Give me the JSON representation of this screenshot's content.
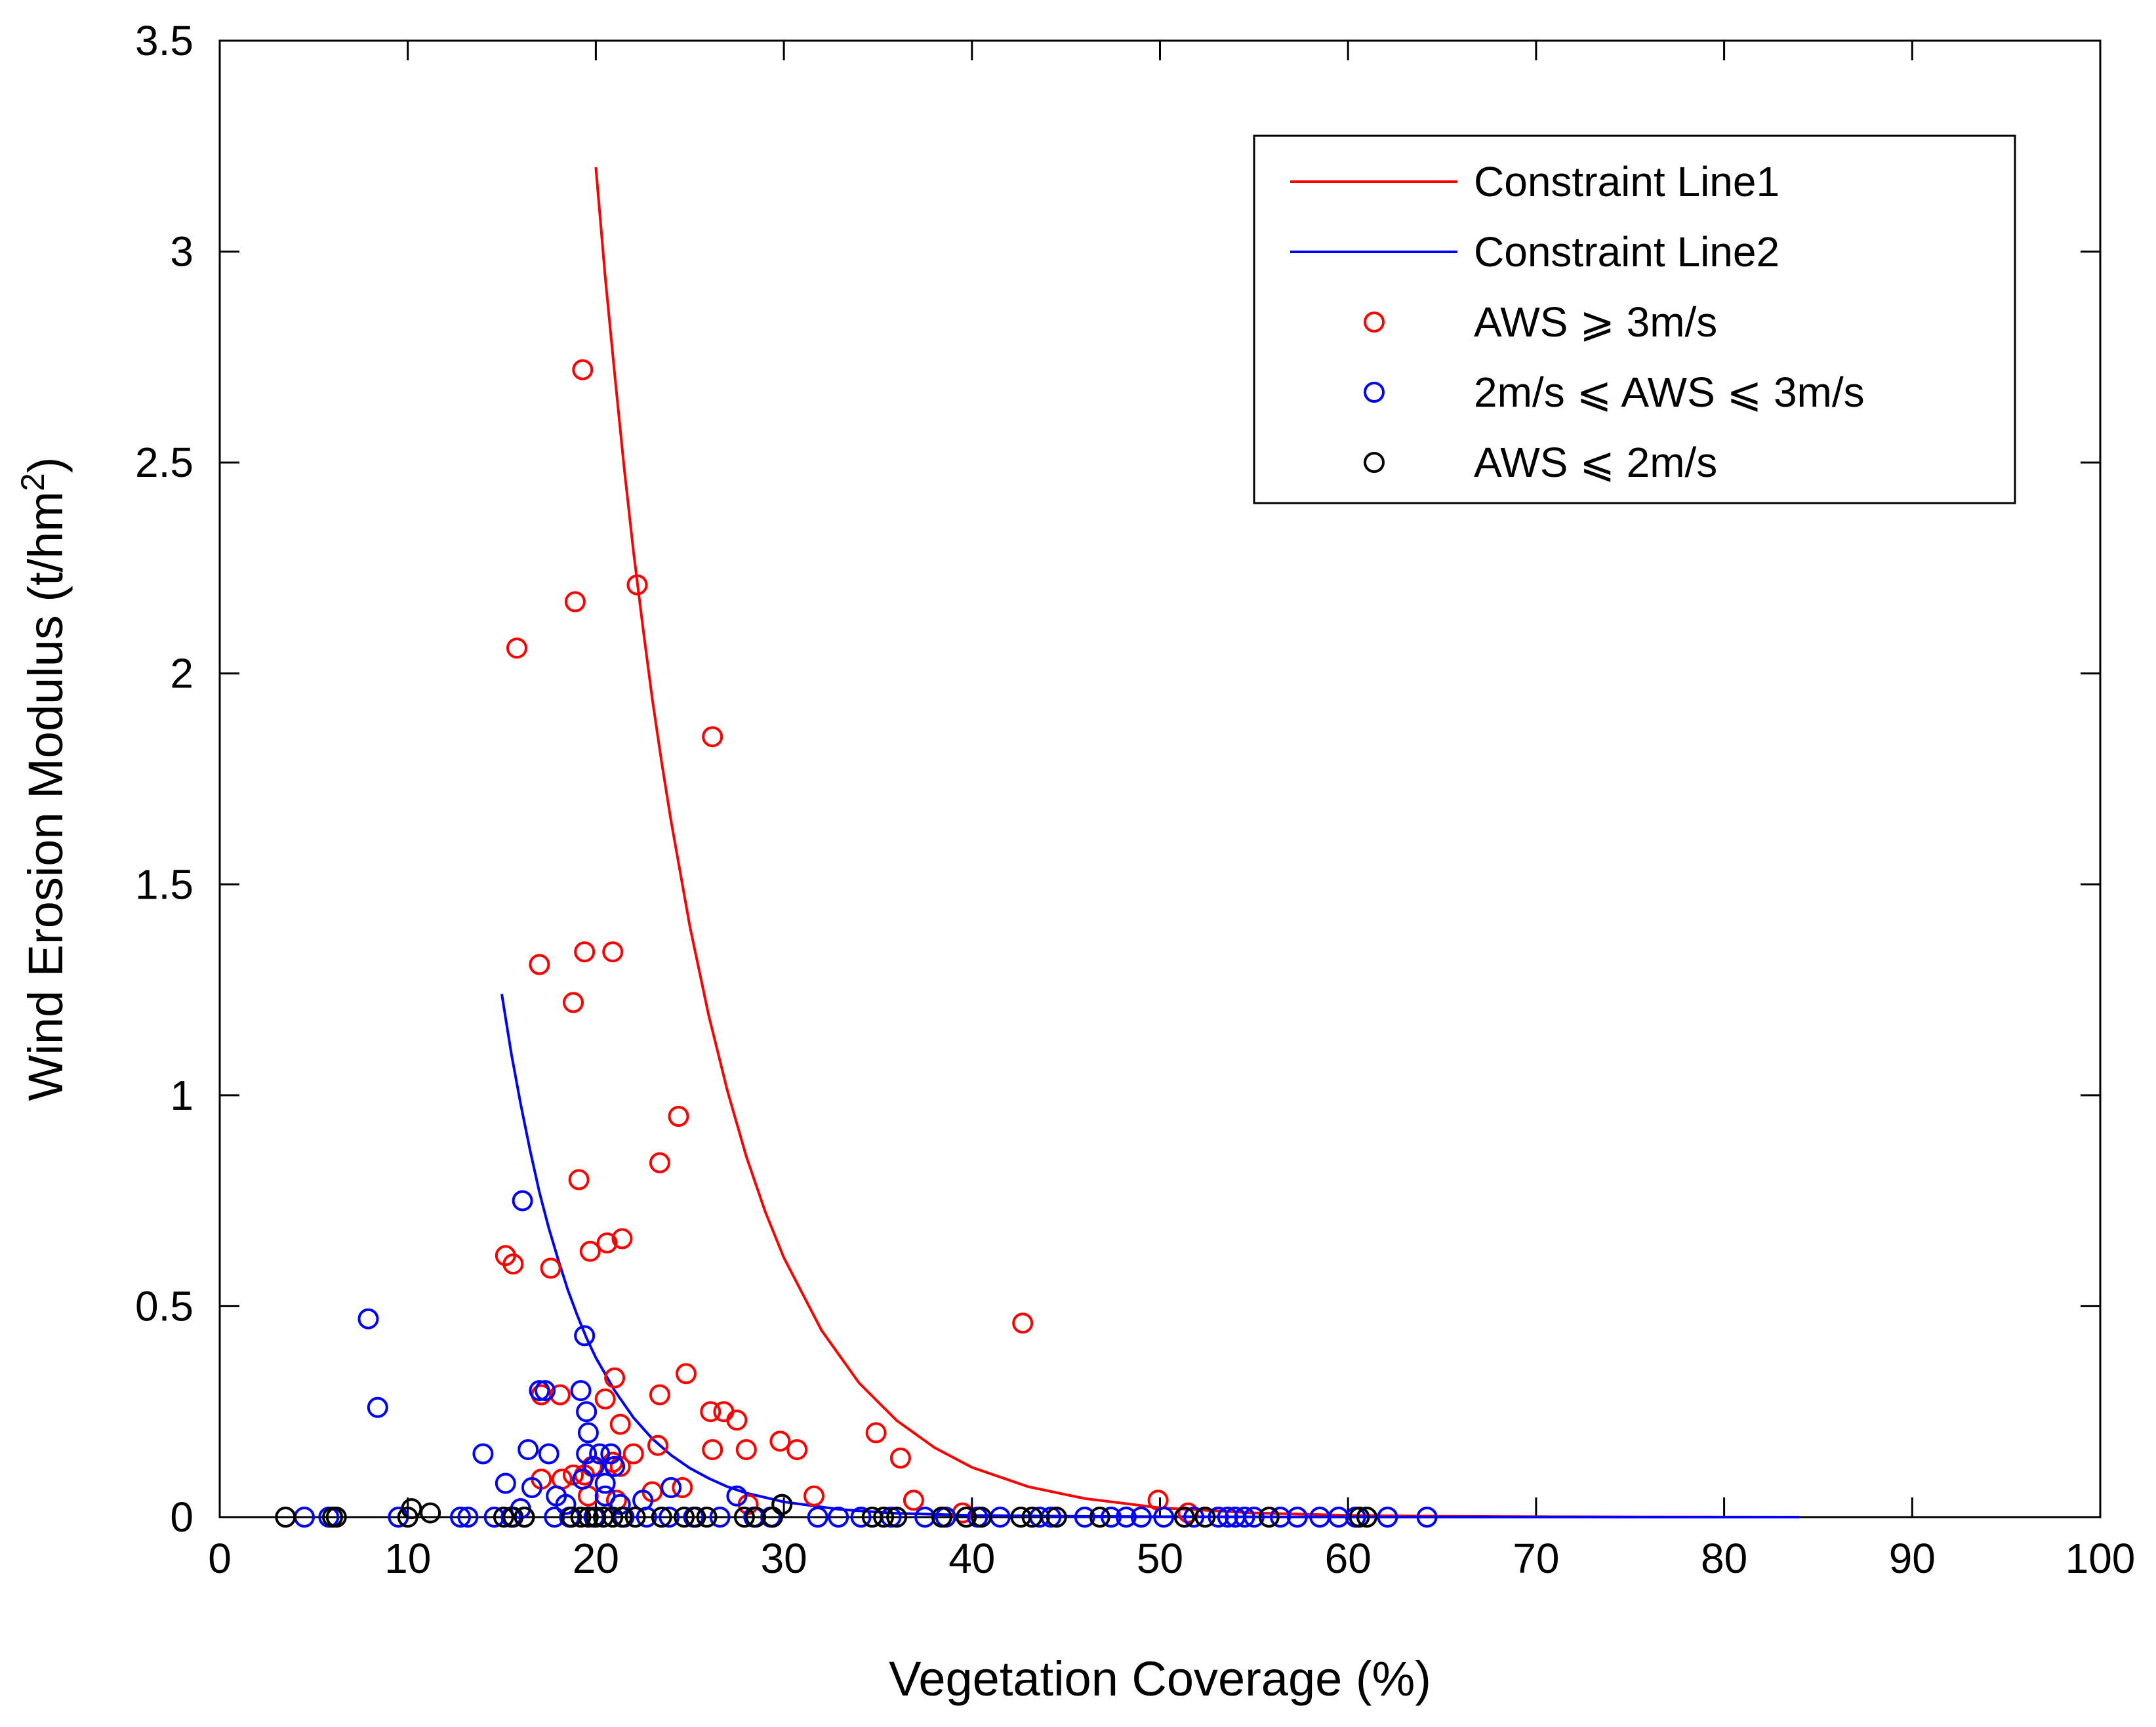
{
  "chart_data": {
    "type": "scatter",
    "xlabel": "Vegetation Coverage (%)",
    "ylabel": "Wind Erosion Modulus (t/hm",
    "ylabel_superscript": "2",
    "ylabel_suffix": ")",
    "xlim": [
      0,
      100
    ],
    "ylim": [
      0,
      3.5
    ],
    "xticks": [
      0,
      10,
      20,
      30,
      40,
      50,
      60,
      70,
      80,
      90,
      100
    ],
    "yticks": [
      0,
      0.5,
      1,
      1.5,
      2,
      2.5,
      3,
      3.5
    ],
    "xtick_labels": [
      "0",
      "10",
      "20",
      "30",
      "40",
      "50",
      "60",
      "70",
      "80",
      "90",
      "100"
    ],
    "ytick_labels": [
      "0",
      "0.5",
      "1",
      "1.5",
      "2",
      "2.5",
      "3",
      "3.5"
    ],
    "grid": false,
    "legend_position": "top-right",
    "lines": [
      {
        "name": "Constraint Line1",
        "color": "#ff0000",
        "x": [
          20,
          20.5,
          21,
          21.5,
          22,
          22.5,
          23,
          23.5,
          24,
          25,
          26,
          27,
          28,
          29,
          30,
          32,
          34,
          36,
          38,
          40,
          43,
          46,
          50,
          55,
          60,
          65,
          70,
          75,
          80,
          84
        ],
        "y": [
          3.2,
          2.94,
          2.71,
          2.49,
          2.29,
          2.11,
          1.94,
          1.79,
          1.65,
          1.4,
          1.19,
          1.01,
          0.855,
          0.725,
          0.615,
          0.443,
          0.318,
          0.229,
          0.165,
          0.118,
          0.072,
          0.044,
          0.022,
          0.01,
          0.004,
          0.002,
          0.001,
          0.0005,
          0.0002,
          0
        ]
      },
      {
        "name": "Constraint Line2",
        "color": "#0000ff",
        "x": [
          15,
          15.5,
          16,
          16.5,
          17,
          17.5,
          18,
          18.5,
          19,
          19.5,
          20,
          21,
          22,
          23,
          24,
          25,
          26,
          27,
          28,
          30,
          33,
          36,
          40,
          45,
          50,
          60,
          70,
          84
        ],
        "y": [
          1.24,
          1.1,
          0.98,
          0.87,
          0.77,
          0.685,
          0.61,
          0.54,
          0.48,
          0.425,
          0.378,
          0.3,
          0.236,
          0.186,
          0.147,
          0.116,
          0.092,
          0.072,
          0.057,
          0.036,
          0.018,
          0.009,
          0.004,
          0.002,
          0.001,
          0.0003,
          0.0001,
          0
        ]
      }
    ],
    "series": [
      {
        "name": "AWS ⩾ 3m/s",
        "color": "#ff0000",
        "points": [
          [
            19.3,
            2.72
          ],
          [
            22.2,
            2.21
          ],
          [
            18.9,
            2.17
          ],
          [
            15.8,
            2.06
          ],
          [
            26.2,
            1.85
          ],
          [
            20.9,
            1.34
          ],
          [
            19.4,
            1.34
          ],
          [
            17.0,
            1.31
          ],
          [
            18.8,
            1.22
          ],
          [
            24.4,
            0.95
          ],
          [
            23.4,
            0.84
          ],
          [
            19.1,
            0.8
          ],
          [
            21.4,
            0.66
          ],
          [
            20.6,
            0.65
          ],
          [
            19.7,
            0.63
          ],
          [
            15.2,
            0.62
          ],
          [
            15.6,
            0.6
          ],
          [
            17.6,
            0.59
          ],
          [
            42.7,
            0.46
          ],
          [
            24.8,
            0.34
          ],
          [
            21.0,
            0.33
          ],
          [
            17.1,
            0.29
          ],
          [
            18.1,
            0.29
          ],
          [
            23.4,
            0.29
          ],
          [
            20.5,
            0.28
          ],
          [
            26.1,
            0.25
          ],
          [
            26.8,
            0.25
          ],
          [
            27.5,
            0.23
          ],
          [
            21.3,
            0.22
          ],
          [
            34.9,
            0.2
          ],
          [
            29.8,
            0.18
          ],
          [
            30.7,
            0.16
          ],
          [
            23.3,
            0.17
          ],
          [
            26.2,
            0.16
          ],
          [
            28.0,
            0.16
          ],
          [
            22.0,
            0.15
          ],
          [
            36.2,
            0.14
          ],
          [
            20.9,
            0.13
          ],
          [
            19.8,
            0.12
          ],
          [
            21.3,
            0.12
          ],
          [
            19.4,
            0.1
          ],
          [
            18.8,
            0.1
          ],
          [
            17.1,
            0.09
          ],
          [
            18.2,
            0.09
          ],
          [
            23.0,
            0.06
          ],
          [
            24.6,
            0.07
          ],
          [
            31.6,
            0.05
          ],
          [
            36.9,
            0.04
          ],
          [
            49.9,
            0.04
          ],
          [
            28.1,
            0.03
          ],
          [
            39.5,
            0.01
          ],
          [
            51.5,
            0.01
          ],
          [
            19.6,
            0.05
          ],
          [
            21.1,
            0.04
          ]
        ]
      },
      {
        "name": "2m/s ⩽ AWS ⩽  3m/s",
        "color": "#0000ff",
        "points": [
          [
            7.9,
            0.47
          ],
          [
            8.4,
            0.26
          ],
          [
            16.1,
            0.75
          ],
          [
            19.4,
            0.43
          ],
          [
            17.0,
            0.3
          ],
          [
            17.3,
            0.3
          ],
          [
            19.2,
            0.3
          ],
          [
            19.5,
            0.25
          ],
          [
            19.6,
            0.2
          ],
          [
            14.0,
            0.15
          ],
          [
            16.4,
            0.16
          ],
          [
            17.5,
            0.15
          ],
          [
            19.5,
            0.15
          ],
          [
            20.2,
            0.15
          ],
          [
            20.8,
            0.15
          ],
          [
            19.9,
            0.12
          ],
          [
            21.0,
            0.12
          ],
          [
            19.3,
            0.09
          ],
          [
            15.2,
            0.08
          ],
          [
            20.5,
            0.08
          ],
          [
            16.6,
            0.07
          ],
          [
            24.0,
            0.07
          ],
          [
            27.5,
            0.05
          ],
          [
            17.9,
            0.05
          ],
          [
            20.5,
            0.05
          ],
          [
            22.5,
            0.04
          ],
          [
            29.9,
            0.03
          ],
          [
            21.3,
            0.03
          ],
          [
            16.0,
            0.02
          ],
          [
            18.4,
            0.03
          ],
          [
            4.5,
            0
          ],
          [
            5.8,
            0
          ],
          [
            9.5,
            0
          ],
          [
            12.8,
            0
          ],
          [
            13.2,
            0
          ],
          [
            14.6,
            0
          ],
          [
            15.5,
            0
          ],
          [
            16.2,
            0
          ],
          [
            17.8,
            0
          ],
          [
            18.6,
            0
          ],
          [
            19.9,
            0
          ],
          [
            21.5,
            0
          ],
          [
            22.7,
            0
          ],
          [
            23.9,
            0
          ],
          [
            25.2,
            0
          ],
          [
            26.6,
            0
          ],
          [
            28.4,
            0
          ],
          [
            29.3,
            0
          ],
          [
            31.8,
            0
          ],
          [
            32.9,
            0
          ],
          [
            34.1,
            0
          ],
          [
            35.7,
            0
          ],
          [
            37.5,
            0
          ],
          [
            38.6,
            0
          ],
          [
            40.3,
            0
          ],
          [
            41.5,
            0
          ],
          [
            43.6,
            0
          ],
          [
            44.2,
            0
          ],
          [
            46.0,
            0
          ],
          [
            47.4,
            0
          ],
          [
            48.2,
            0
          ],
          [
            49.0,
            0
          ],
          [
            50.2,
            0
          ],
          [
            51.8,
            0
          ],
          [
            53.1,
            0
          ],
          [
            53.6,
            0
          ],
          [
            54.0,
            0
          ],
          [
            54.5,
            0
          ],
          [
            55.0,
            0
          ],
          [
            56.4,
            0
          ],
          [
            57.3,
            0
          ],
          [
            58.5,
            0
          ],
          [
            59.5,
            0
          ],
          [
            60.4,
            0
          ],
          [
            62.1,
            0
          ],
          [
            64.2,
            0
          ]
        ]
      },
      {
        "name": "AWS ⩽ 2m/s",
        "color": "#000000",
        "points": [
          [
            3.5,
            0
          ],
          [
            6.0,
            0
          ],
          [
            6.2,
            0
          ],
          [
            10.0,
            0
          ],
          [
            10.2,
            0.02
          ],
          [
            11.2,
            0.01
          ],
          [
            15.1,
            0
          ],
          [
            15.6,
            0
          ],
          [
            16.2,
            0
          ],
          [
            18.7,
            0
          ],
          [
            19.2,
            0
          ],
          [
            19.6,
            0
          ],
          [
            20.0,
            0
          ],
          [
            20.4,
            0
          ],
          [
            20.9,
            0
          ],
          [
            21.4,
            0
          ],
          [
            22.1,
            0
          ],
          [
            23.5,
            0
          ],
          [
            24.7,
            0
          ],
          [
            25.3,
            0
          ],
          [
            25.9,
            0
          ],
          [
            27.9,
            0
          ],
          [
            28.5,
            0
          ],
          [
            29.4,
            0
          ],
          [
            29.9,
            0.03
          ],
          [
            34.7,
            0
          ],
          [
            35.3,
            0
          ],
          [
            36.0,
            0
          ],
          [
            38.4,
            0
          ],
          [
            39.7,
            0
          ],
          [
            40.5,
            0
          ],
          [
            42.6,
            0
          ],
          [
            43.2,
            0
          ],
          [
            44.5,
            0
          ],
          [
            46.8,
            0
          ],
          [
            51.3,
            0
          ],
          [
            52.4,
            0
          ],
          [
            55.8,
            0
          ],
          [
            60.6,
            0
          ],
          [
            61.0,
            0
          ]
        ]
      }
    ]
  }
}
